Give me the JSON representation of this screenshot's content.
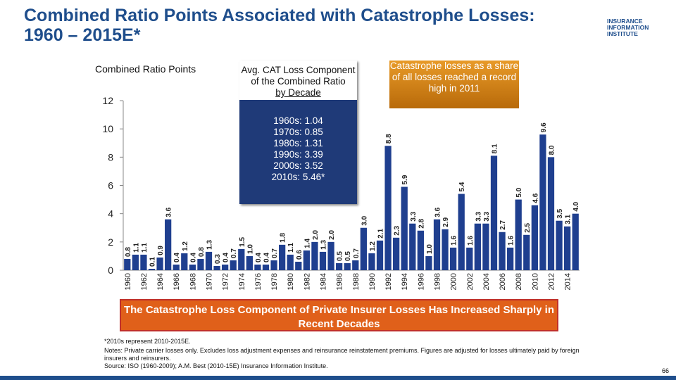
{
  "header": {
    "title": "Combined Ratio Points Associated with Catastrophe Losses: 1960 – 2015E*",
    "logo": [
      "INSURANCE",
      "INFORMATION",
      "INSTITUTE"
    ]
  },
  "chart_data": {
    "type": "bar",
    "y_label": "Combined Ratio Points",
    "categories": [
      "1960",
      null,
      "1962",
      null,
      "1964",
      null,
      "1966",
      null,
      "1968",
      null,
      "1970",
      null,
      "1972",
      null,
      "1974",
      null,
      "1976",
      null,
      "1978",
      null,
      "1980",
      null,
      "1982",
      null,
      "1984",
      null,
      "1986",
      null,
      "1988",
      null,
      "1990",
      null,
      "1992",
      null,
      "1994",
      null,
      "1996",
      null,
      "1998",
      null,
      "2000",
      null,
      "2002",
      null,
      "2004",
      null,
      "2006",
      null,
      "2008",
      null,
      "2010",
      null,
      "2012",
      null,
      "2014",
      null
    ],
    "values": [
      0.8,
      1.1,
      1.1,
      0.1,
      0.9,
      3.6,
      0.4,
      1.2,
      0.4,
      0.8,
      1.3,
      0.3,
      0.4,
      0.7,
      1.5,
      1.0,
      0.4,
      0.4,
      0.7,
      1.8,
      1.1,
      0.6,
      1.4,
      2.0,
      1.3,
      2.0,
      0.5,
      0.5,
      0.7,
      3.0,
      1.2,
      2.1,
      8.8,
      2.3,
      5.9,
      3.3,
      2.8,
      1.0,
      3.6,
      2.9,
      1.6,
      5.4,
      1.6,
      3.3,
      3.3,
      8.1,
      2.7,
      1.6,
      5.0,
      2.5,
      4.6,
      9.6,
      8.0,
      3.5,
      3.1,
      4.0
    ],
    "value_labels": [
      "0.8",
      "1.1",
      "1.1",
      "0.1",
      "0.9",
      "3.6",
      "0.4",
      "1.2",
      "0.4",
      "0.8",
      "1.3",
      "0.3",
      "0.4",
      "0.7",
      "1.5",
      "1.0",
      "0.4",
      "0.4",
      "0.7",
      "1.8",
      "1.1",
      "0.6",
      "1.4",
      "2.0",
      "1.3",
      "2.0",
      "0.5",
      "0.5",
      "0.7",
      "3.0",
      "1.2",
      "2.1",
      "8.8",
      "2.3",
      "5.9",
      "3.3",
      "2.8",
      "1.0",
      "3.6",
      "2.9",
      "1.6",
      "5.4",
      "1.6",
      "3.3",
      "3.3",
      "8.1",
      "2.7",
      "1.6",
      "5.0",
      "2.5",
      "4.6",
      "9.6",
      "8.0",
      "3.5",
      "3.1",
      "4.0"
    ],
    "color": "#1f3f8f",
    "ylim": [
      0,
      12
    ],
    "yticks": [
      0,
      2,
      4,
      6,
      8,
      10,
      12
    ],
    "decade_box": {
      "title": "Avg. CAT Loss Component of the Combined Ratio",
      "title_underlined": "by Decade",
      "lines": [
        "1960s: 1.04",
        "1970s: 0.85",
        "1980s: 1.31",
        "1990s: 3.39",
        "2000s: 3.52",
        "2010s: 5.46*"
      ]
    },
    "callout": "Catastrophe losses as a share of all losses reached a record high in 2011"
  },
  "banner": "The Catastrophe Loss Component of Private Insurer Losses Has Increased Sharply in Recent Decades",
  "notes": [
    "*2010s represent 2010-2015E.",
    "Notes: Private carrier losses only. Excludes loss adjustment expenses and reinsurance reinstatement premiums. Figures are adjusted for losses ultimately paid by foreign insurers and reinsurers.",
    "Source: ISO (1960-2009); A.M. Best (2010-15E) Insurance Information Institute."
  ],
  "page_number": "66"
}
